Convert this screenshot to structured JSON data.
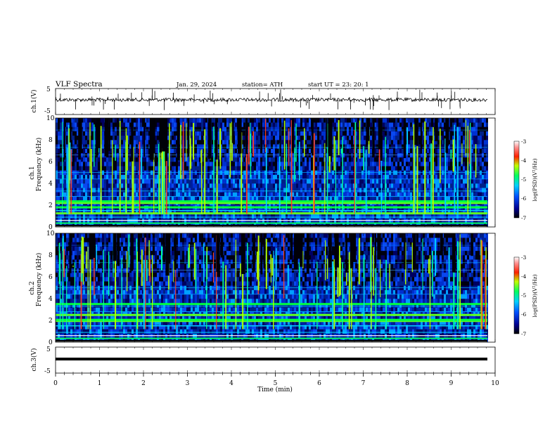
{
  "header": {
    "title": "VLF  Spectra",
    "date": "Jan. 29, 2024",
    "station": "station= ATH",
    "start_ut": "start  UT  =   23: 20: 1"
  },
  "chart_data": [
    {
      "type": "line",
      "panel": "ch1-waveform",
      "ylabel": "ch.1(V)",
      "ylim": [
        -5,
        5
      ],
      "ytick_labels": [
        "-5",
        "5"
      ],
      "xlim": [
        0,
        10
      ],
      "baseline_value": 0
    },
    {
      "type": "heatmap",
      "panel": "ch1-spectrogram",
      "ylabel_top": "ch.1",
      "ylabel": "Frequency  (kHz)",
      "ylim": [
        0,
        10
      ],
      "ytick_labels": [
        "0",
        "2",
        "4",
        "6",
        "8",
        "10"
      ],
      "xlim": [
        0,
        10
      ],
      "colorbar": {
        "label": "log(PSD)(V²/Hz)",
        "range": [
          -7,
          -3
        ],
        "ticks": [
          "-3",
          "-4",
          "-5",
          "-6",
          "-7"
        ]
      },
      "strong_bands_khz": [
        1.25,
        1.8,
        2.2,
        2.35
      ]
    },
    {
      "type": "heatmap",
      "panel": "ch2-spectrogram",
      "ylabel_top": "ch.2",
      "ylabel": "Frequency  (kHz)",
      "ylim": [
        0,
        10
      ],
      "ytick_labels": [
        "0",
        "2",
        "4",
        "6",
        "8",
        "10"
      ],
      "xlim": [
        0,
        10
      ],
      "colorbar": {
        "label": "log(PSD)(V²/Hz)",
        "range": [
          -7,
          -3
        ],
        "ticks": [
          "-3",
          "-4",
          "-5",
          "-6",
          "-7"
        ]
      },
      "strong_bands_khz": [
        1.95,
        2.05,
        2.5,
        3.5
      ]
    },
    {
      "type": "line",
      "panel": "ch3-waveform",
      "ylabel": "ch.3(V)",
      "ylim": [
        -5,
        5
      ],
      "ytick_labels": [
        "-5",
        "5"
      ],
      "xlim": [
        0,
        10
      ],
      "baseline_value": 0
    }
  ],
  "x_axis": {
    "label": "Time  (min)",
    "tick_labels": [
      "0",
      "1",
      "2",
      "3",
      "4",
      "5",
      "6",
      "7",
      "8",
      "9",
      "10"
    ]
  },
  "colors": {
    "low": "#000080",
    "mid_low": "#0040ff",
    "mid": "#00c0ff",
    "mid_high": "#00ff40",
    "high": "#ff2000",
    "max": "#ffffff"
  }
}
